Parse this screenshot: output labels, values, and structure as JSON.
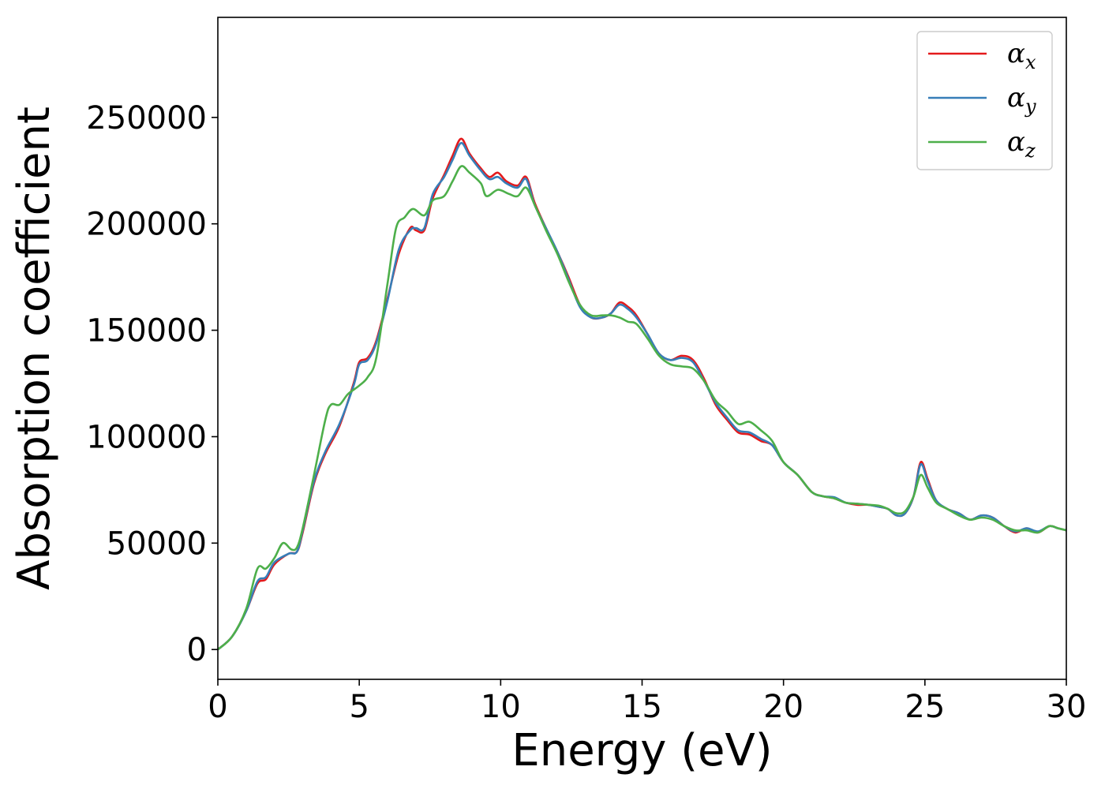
{
  "chart_data": {
    "type": "line",
    "title": "",
    "xlabel": "Energy (eV)",
    "ylabel": "Absorption coefficient",
    "xlim": [
      0,
      30
    ],
    "ylim": [
      -14000,
      297000
    ],
    "xticks": [
      0,
      5,
      10,
      15,
      20,
      25,
      30
    ],
    "xtick_labels": [
      "0",
      "5",
      "10",
      "15",
      "20",
      "25",
      "30"
    ],
    "yticks": [
      0,
      50000,
      100000,
      150000,
      200000,
      250000
    ],
    "ytick_labels": [
      "0",
      "50000",
      "100000",
      "150000",
      "200000",
      "250000"
    ],
    "grid": false,
    "legend_position": "top-right",
    "series": [
      {
        "name": "α_x",
        "label_main": "α",
        "label_sub": "x",
        "color": "#e41a1c",
        "points": [
          [
            0,
            0
          ],
          [
            0.5,
            6000
          ],
          [
            1,
            18000
          ],
          [
            1.4,
            31000
          ],
          [
            1.7,
            33000
          ],
          [
            2,
            40000
          ],
          [
            2.5,
            45000
          ],
          [
            2.8,
            46000
          ],
          [
            3,
            55000
          ],
          [
            3.4,
            78000
          ],
          [
            3.8,
            92000
          ],
          [
            4.3,
            105000
          ],
          [
            4.8,
            125000
          ],
          [
            5,
            135000
          ],
          [
            5.3,
            137000
          ],
          [
            5.6,
            145000
          ],
          [
            6,
            165000
          ],
          [
            6.4,
            186000
          ],
          [
            6.8,
            198000
          ],
          [
            7,
            197000
          ],
          [
            7.3,
            197000
          ],
          [
            7.6,
            212000
          ],
          [
            8,
            223000
          ],
          [
            8.3,
            232000
          ],
          [
            8.6,
            240000
          ],
          [
            8.9,
            233000
          ],
          [
            9.3,
            226000
          ],
          [
            9.6,
            222000
          ],
          [
            9.9,
            224000
          ],
          [
            10.2,
            220000
          ],
          [
            10.6,
            218000
          ],
          [
            10.9,
            222000
          ],
          [
            11.2,
            210000
          ],
          [
            11.6,
            198000
          ],
          [
            12,
            187000
          ],
          [
            12.4,
            175000
          ],
          [
            12.8,
            162000
          ],
          [
            13.2,
            156000
          ],
          [
            13.6,
            156000
          ],
          [
            13.9,
            158000
          ],
          [
            14.2,
            163000
          ],
          [
            14.5,
            161000
          ],
          [
            14.8,
            157000
          ],
          [
            15.2,
            148000
          ],
          [
            15.6,
            139000
          ],
          [
            16,
            136000
          ],
          [
            16.4,
            138000
          ],
          [
            16.8,
            136000
          ],
          [
            17.2,
            127000
          ],
          [
            17.6,
            115000
          ],
          [
            18,
            108000
          ],
          [
            18.4,
            102000
          ],
          [
            18.8,
            101000
          ],
          [
            19.2,
            98000
          ],
          [
            19.6,
            96000
          ],
          [
            20,
            88000
          ],
          [
            20.5,
            82000
          ],
          [
            21,
            74000
          ],
          [
            21.4,
            72000
          ],
          [
            21.8,
            71000
          ],
          [
            22.2,
            69000
          ],
          [
            22.6,
            68000
          ],
          [
            23,
            68000
          ],
          [
            23.4,
            67000
          ],
          [
            23.7,
            66000
          ],
          [
            24,
            63000
          ],
          [
            24.3,
            64000
          ],
          [
            24.6,
            72000
          ],
          [
            24.85,
            88000
          ],
          [
            25.1,
            80000
          ],
          [
            25.4,
            70000
          ],
          [
            25.8,
            66000
          ],
          [
            26.2,
            64000
          ],
          [
            26.6,
            61000
          ],
          [
            27,
            63000
          ],
          [
            27.4,
            62000
          ],
          [
            27.8,
            58000
          ],
          [
            28.2,
            55000
          ],
          [
            28.6,
            57000
          ],
          [
            29,
            55000
          ],
          [
            29.4,
            58000
          ],
          [
            29.7,
            57000
          ],
          [
            30,
            56000
          ]
        ]
      },
      {
        "name": "α_y",
        "label_main": "α",
        "label_sub": "y",
        "color": "#377eb8",
        "points": [
          [
            0,
            0
          ],
          [
            0.5,
            6000
          ],
          [
            1,
            18000
          ],
          [
            1.4,
            32000
          ],
          [
            1.7,
            34000
          ],
          [
            2,
            41000
          ],
          [
            2.5,
            45000
          ],
          [
            2.8,
            46000
          ],
          [
            3,
            56000
          ],
          [
            3.4,
            79000
          ],
          [
            3.8,
            93000
          ],
          [
            4.3,
            106000
          ],
          [
            4.8,
            124000
          ],
          [
            5,
            134000
          ],
          [
            5.3,
            136000
          ],
          [
            5.6,
            144000
          ],
          [
            6,
            164000
          ],
          [
            6.4,
            188000
          ],
          [
            6.8,
            197000
          ],
          [
            7,
            198000
          ],
          [
            7.3,
            198000
          ],
          [
            7.6,
            214000
          ],
          [
            8,
            222000
          ],
          [
            8.3,
            230000
          ],
          [
            8.6,
            238000
          ],
          [
            8.9,
            232000
          ],
          [
            9.3,
            225000
          ],
          [
            9.6,
            221000
          ],
          [
            9.9,
            222000
          ],
          [
            10.2,
            219000
          ],
          [
            10.6,
            217000
          ],
          [
            10.9,
            221000
          ],
          [
            11.2,
            209000
          ],
          [
            11.6,
            198000
          ],
          [
            12,
            187000
          ],
          [
            12.4,
            174000
          ],
          [
            12.8,
            161000
          ],
          [
            13.2,
            156000
          ],
          [
            13.6,
            156000
          ],
          [
            13.9,
            158000
          ],
          [
            14.2,
            162000
          ],
          [
            14.5,
            160000
          ],
          [
            14.8,
            156000
          ],
          [
            15.2,
            148000
          ],
          [
            15.6,
            139000
          ],
          [
            16,
            136000
          ],
          [
            16.4,
            137000
          ],
          [
            16.8,
            135000
          ],
          [
            17.2,
            126000
          ],
          [
            17.6,
            116000
          ],
          [
            18,
            109000
          ],
          [
            18.4,
            103000
          ],
          [
            18.8,
            102000
          ],
          [
            19.2,
            99000
          ],
          [
            19.6,
            96000
          ],
          [
            20,
            88000
          ],
          [
            20.5,
            82000
          ],
          [
            21,
            74000
          ],
          [
            21.4,
            72000
          ],
          [
            21.8,
            71500
          ],
          [
            22.2,
            69000
          ],
          [
            22.6,
            68500
          ],
          [
            23,
            68000
          ],
          [
            23.4,
            67000
          ],
          [
            23.7,
            66000
          ],
          [
            24,
            63000
          ],
          [
            24.3,
            64000
          ],
          [
            24.6,
            72000
          ],
          [
            24.85,
            87000
          ],
          [
            25.1,
            79000
          ],
          [
            25.4,
            70000
          ],
          [
            25.8,
            66000
          ],
          [
            26.2,
            64000
          ],
          [
            26.6,
            61000
          ],
          [
            27,
            63000
          ],
          [
            27.4,
            62000
          ],
          [
            27.8,
            58000
          ],
          [
            28.2,
            55500
          ],
          [
            28.6,
            57000
          ],
          [
            29,
            55500
          ],
          [
            29.4,
            58000
          ],
          [
            29.7,
            57000
          ],
          [
            30,
            56000
          ]
        ]
      },
      {
        "name": "α_z",
        "label_main": "α",
        "label_sub": "z",
        "color": "#4daf4a",
        "points": [
          [
            0,
            0
          ],
          [
            0.5,
            6000
          ],
          [
            1,
            19000
          ],
          [
            1.4,
            38000
          ],
          [
            1.7,
            38000
          ],
          [
            2,
            43000
          ],
          [
            2.3,
            50000
          ],
          [
            2.6,
            47000
          ],
          [
            2.8,
            48000
          ],
          [
            3,
            57000
          ],
          [
            3.4,
            82000
          ],
          [
            3.8,
            108000
          ],
          [
            4,
            115000
          ],
          [
            4.3,
            115000
          ],
          [
            4.6,
            120000
          ],
          [
            5,
            124000
          ],
          [
            5.3,
            128000
          ],
          [
            5.6,
            137000
          ],
          [
            6,
            172000
          ],
          [
            6.3,
            198000
          ],
          [
            6.6,
            203000
          ],
          [
            6.9,
            207000
          ],
          [
            7.3,
            204000
          ],
          [
            7.6,
            211000
          ],
          [
            8,
            213000
          ],
          [
            8.3,
            220000
          ],
          [
            8.6,
            227000
          ],
          [
            8.9,
            224000
          ],
          [
            9.3,
            219000
          ],
          [
            9.5,
            213000
          ],
          [
            9.9,
            216000
          ],
          [
            10.3,
            214000
          ],
          [
            10.6,
            213000
          ],
          [
            10.9,
            217000
          ],
          [
            11.2,
            209000
          ],
          [
            11.6,
            197000
          ],
          [
            12,
            186000
          ],
          [
            12.4,
            173000
          ],
          [
            12.8,
            162000
          ],
          [
            13.2,
            157000
          ],
          [
            13.6,
            157000
          ],
          [
            13.9,
            157000
          ],
          [
            14.2,
            156000
          ],
          [
            14.5,
            154000
          ],
          [
            14.8,
            153000
          ],
          [
            15.2,
            146000
          ],
          [
            15.6,
            138000
          ],
          [
            16,
            134000
          ],
          [
            16.4,
            133000
          ],
          [
            16.8,
            132000
          ],
          [
            17.2,
            126000
          ],
          [
            17.6,
            117000
          ],
          [
            18,
            112000
          ],
          [
            18.4,
            106000
          ],
          [
            18.8,
            107000
          ],
          [
            19.2,
            103000
          ],
          [
            19.6,
            98000
          ],
          [
            20,
            88000
          ],
          [
            20.5,
            82000
          ],
          [
            21,
            74000
          ],
          [
            21.4,
            72000
          ],
          [
            21.8,
            71000
          ],
          [
            22.2,
            69000
          ],
          [
            22.6,
            68500
          ],
          [
            23,
            68000
          ],
          [
            23.4,
            67500
          ],
          [
            23.7,
            66000
          ],
          [
            24,
            64000
          ],
          [
            24.3,
            65000
          ],
          [
            24.6,
            72000
          ],
          [
            24.85,
            82000
          ],
          [
            25.1,
            76000
          ],
          [
            25.4,
            69000
          ],
          [
            25.8,
            66000
          ],
          [
            26.2,
            63000
          ],
          [
            26.6,
            61000
          ],
          [
            27,
            62000
          ],
          [
            27.4,
            61000
          ],
          [
            27.8,
            58000
          ],
          [
            28.2,
            56000
          ],
          [
            28.6,
            56000
          ],
          [
            29,
            55000
          ],
          [
            29.4,
            58000
          ],
          [
            29.7,
            57000
          ],
          [
            30,
            56000
          ]
        ]
      }
    ]
  }
}
